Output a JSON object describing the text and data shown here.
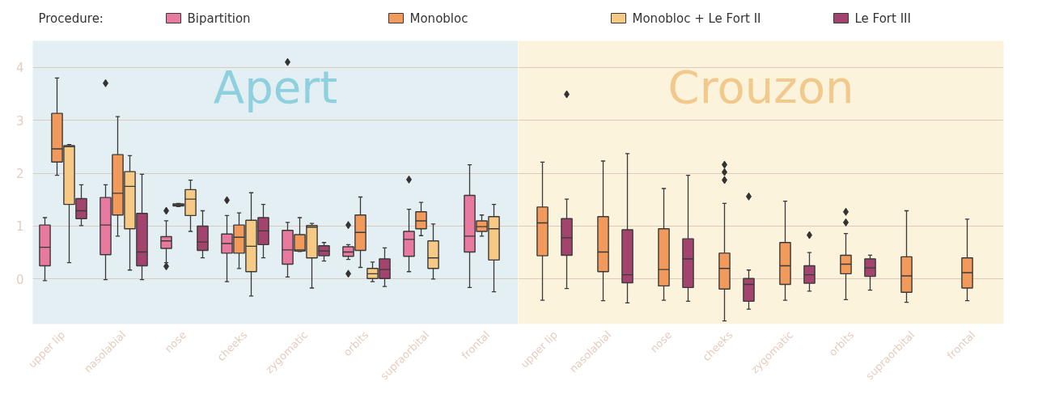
{
  "chart_data": [
    {
      "type": "box",
      "title": "Apert",
      "legend_title": "Procedure:",
      "legend": "top",
      "grid": "y",
      "marker": "diamond",
      "categories": [
        "upper lip",
        "nasolabial",
        "nose",
        "cheeks",
        "zygomatic",
        "orbits",
        "supraorbital",
        "frontal"
      ],
      "ylim": [
        -0.85,
        4.5
      ],
      "yticks": [
        0,
        1,
        2,
        3,
        4
      ],
      "series": [
        {
          "name": "Bipartition",
          "color": "#e8799f",
          "boxes": [
            {
              "low": -0.03,
              "q1": 0.25,
              "median": 0.6,
              "q3": 1.02,
              "high": 1.16
            },
            {
              "low": -0.01,
              "q1": 0.46,
              "median": 1.02,
              "q3": 1.54,
              "high": 1.78,
              "outliers": [
                3.7
              ]
            },
            {
              "low": 0.31,
              "q1": 0.58,
              "median": 0.72,
              "q3": 0.8,
              "high": 1.1,
              "outliers": [
                1.29,
                0.24
              ]
            },
            {
              "low": -0.05,
              "q1": 0.49,
              "median": 0.67,
              "q3": 0.85,
              "high": 1.2,
              "outliers": [
                1.49
              ]
            },
            {
              "low": 0.04,
              "q1": 0.28,
              "median": 0.55,
              "q3": 0.92,
              "high": 1.07,
              "outliers": [
                4.1
              ]
            },
            {
              "low": 0.37,
              "q1": 0.43,
              "median": 0.51,
              "q3": 0.61,
              "high": 0.65,
              "outliers": [
                1.02,
                0.1
              ]
            },
            {
              "low": 0.14,
              "q1": 0.43,
              "median": 0.75,
              "q3": 0.9,
              "high": 1.32,
              "outliers": [
                1.88
              ]
            },
            {
              "low": -0.16,
              "q1": 0.51,
              "median": 0.81,
              "q3": 1.58,
              "high": 2.16
            }
          ]
        },
        {
          "name": "Monobloc",
          "color": "#f29a5c",
          "boxes": [
            {
              "low": 1.96,
              "q1": 2.21,
              "median": 2.46,
              "q3": 3.13,
              "high": 3.8
            },
            {
              "low": 0.81,
              "q1": 1.21,
              "median": 1.62,
              "q3": 2.35,
              "high": 3.07
            },
            {
              "low": 1.37,
              "q1": 1.38,
              "median": 1.4,
              "q3": 1.42,
              "high": 1.43
            },
            {
              "low": 0.2,
              "q1": 0.49,
              "median": 0.79,
              "q3": 1.02,
              "high": 1.25
            },
            {
              "low": 0.52,
              "q1": 0.53,
              "median": 0.55,
              "q3": 0.84,
              "high": 1.16
            },
            {
              "low": 0.22,
              "q1": 0.54,
              "median": 0.88,
              "q3": 1.21,
              "high": 1.55
            },
            {
              "low": 0.82,
              "q1": 0.95,
              "median": 1.1,
              "q3": 1.27,
              "high": 1.45
            },
            {
              "low": 0.81,
              "q1": 0.9,
              "median": 0.99,
              "q3": 1.1,
              "high": 1.21
            }
          ]
        },
        {
          "name": "Monobloc + Le Fort II",
          "color": "#f6c985",
          "boxes": [
            {
              "low": 0.31,
              "q1": 1.41,
              "median": 2.5,
              "q3": 2.52,
              "high": 2.54
            },
            {
              "low": 0.17,
              "q1": 0.95,
              "median": 1.75,
              "q3": 2.03,
              "high": 2.33
            },
            {
              "low": 0.9,
              "q1": 1.2,
              "median": 1.51,
              "q3": 1.69,
              "high": 1.87
            },
            {
              "low": -0.32,
              "q1": 0.14,
              "median": 0.62,
              "q3": 1.11,
              "high": 1.63
            },
            {
              "low": -0.17,
              "q1": 0.4,
              "median": 0.98,
              "q3": 1.01,
              "high": 1.05
            },
            {
              "low": -0.05,
              "q1": 0.01,
              "median": 0.1,
              "q3": 0.2,
              "high": 0.32
            },
            {
              "low": 0.0,
              "q1": 0.2,
              "median": 0.4,
              "q3": 0.72,
              "high": 1.04
            },
            {
              "low": -0.24,
              "q1": 0.36,
              "median": 0.95,
              "q3": 1.18,
              "high": 1.41
            }
          ]
        },
        {
          "name": "Le Fort III",
          "color": "#a3446f",
          "boxes": [
            {
              "low": 1.01,
              "q1": 1.14,
              "median": 1.29,
              "q3": 1.52,
              "high": 1.78
            },
            {
              "low": -0.01,
              "q1": 0.25,
              "median": 0.51,
              "q3": 1.24,
              "high": 1.98
            },
            {
              "low": 0.4,
              "q1": 0.54,
              "median": 0.7,
              "q3": 1.0,
              "high": 1.29
            },
            {
              "low": 0.4,
              "q1": 0.65,
              "median": 0.91,
              "q3": 1.16,
              "high": 1.41
            },
            {
              "low": 0.34,
              "q1": 0.44,
              "median": 0.53,
              "q3": 0.63,
              "high": 0.69
            },
            {
              "low": -0.14,
              "q1": 0.01,
              "median": 0.18,
              "q3": 0.38,
              "high": 0.59
            },
            null,
            null
          ]
        }
      ]
    },
    {
      "type": "box",
      "title": "Crouzon",
      "grid": "y",
      "marker": "diamond",
      "tick_labels": "x",
      "categories": [
        "upper lip",
        "nasolabial",
        "nose",
        "cheeks",
        "zygomatic",
        "orbits",
        "supraorbital",
        "frontal"
      ],
      "ylim": [
        -0.85,
        4.5
      ],
      "yticks": [
        0,
        1,
        2,
        3,
        4
      ],
      "series": [
        {
          "color": "#e8799f",
          "boxes": [
            null,
            null,
            null,
            null,
            null,
            null,
            null,
            null
          ]
        },
        {
          "color": "#f29a5c",
          "boxes": [
            {
              "low": -0.4,
              "q1": 0.44,
              "median": 1.06,
              "q3": 1.36,
              "high": 2.21
            },
            {
              "low": -0.41,
              "q1": 0.14,
              "median": 0.51,
              "q3": 1.18,
              "high": 2.23
            },
            {
              "low": -0.4,
              "q1": -0.13,
              "median": 0.18,
              "q3": 0.95,
              "high": 1.71
            },
            {
              "low": -0.79,
              "q1": -0.19,
              "median": 0.2,
              "q3": 0.49,
              "high": 1.43,
              "outliers": [
                2.16,
                2.02,
                1.87
              ]
            },
            {
              "low": -0.4,
              "q1": -0.1,
              "median": 0.25,
              "q3": 0.69,
              "high": 1.47
            },
            {
              "low": -0.39,
              "q1": 0.1,
              "median": 0.28,
              "q3": 0.45,
              "high": 0.86,
              "outliers": [
                1.27,
                1.07
              ]
            },
            {
              "low": -0.44,
              "q1": -0.25,
              "median": 0.06,
              "q3": 0.42,
              "high": 1.29
            },
            {
              "low": -0.41,
              "q1": -0.17,
              "median": 0.12,
              "q3": 0.4,
              "high": 1.13
            }
          ]
        },
        {
          "color": "#f6c985",
          "boxes": [
            null,
            null,
            null,
            null,
            null,
            null,
            null,
            null
          ]
        },
        {
          "color": "#a3446f",
          "boxes": [
            {
              "low": -0.18,
              "q1": 0.45,
              "median": 0.78,
              "q3": 1.14,
              "high": 1.51,
              "outliers": [
                3.49
              ]
            },
            {
              "low": -0.45,
              "q1": -0.07,
              "median": 0.08,
              "q3": 0.93,
              "high": 2.37
            },
            {
              "low": -0.42,
              "q1": -0.16,
              "median": 0.38,
              "q3": 0.76,
              "high": 1.96
            },
            {
              "low": -0.57,
              "q1": -0.42,
              "median": -0.1,
              "q3": 0.01,
              "high": 0.17,
              "outliers": [
                1.56
              ]
            },
            {
              "low": -0.23,
              "q1": -0.08,
              "median": 0.08,
              "q3": 0.25,
              "high": 0.5,
              "outliers": [
                0.83
              ]
            },
            {
              "low": -0.21,
              "q1": 0.05,
              "median": 0.21,
              "q3": 0.38,
              "high": 0.45
            },
            null,
            null
          ]
        }
      ]
    }
  ]
}
